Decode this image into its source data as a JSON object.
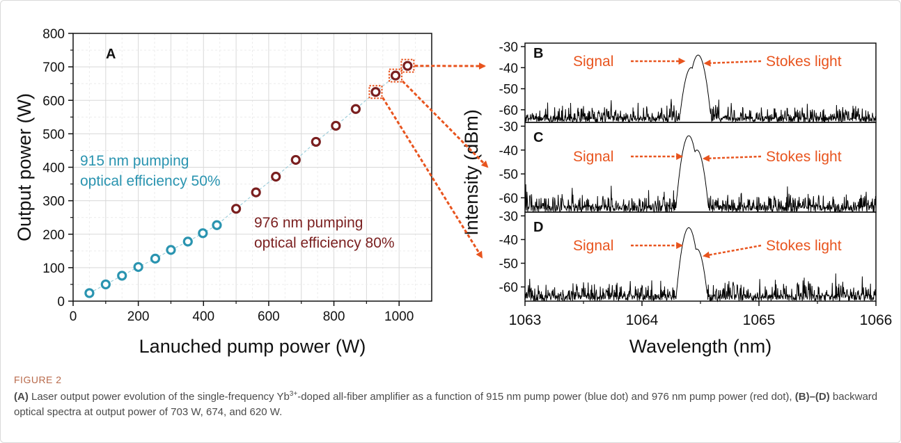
{
  "colors": {
    "pump915": "#2a94b0",
    "pump976": "#7a1f1f",
    "arrow": "#e8541e",
    "spectrum": "#000000"
  },
  "chart_data": [
    {
      "panel": "A",
      "type": "scatter",
      "xlabel": "Lanuched pump power (W)",
      "ylabel": "Output power (W)",
      "xlim": [
        0,
        1100
      ],
      "ylim": [
        0,
        800
      ],
      "xticks": [
        "0",
        "200",
        "400",
        "600",
        "800",
        "1000"
      ],
      "yticks": [
        "0",
        "100",
        "200",
        "300",
        "400",
        "500",
        "600",
        "700",
        "800"
      ],
      "grid": true,
      "series": [
        {
          "name": "915 nm pumping",
          "color_key": "pump915",
          "x": [
            50,
            100,
            150,
            200,
            252,
            300,
            352,
            398,
            441
          ],
          "y": [
            24,
            50,
            76,
            102,
            127,
            153,
            178,
            203,
            227
          ]
        },
        {
          "name": "976 nm pumping",
          "color_key": "pump976",
          "x": [
            500,
            561,
            622,
            683,
            745,
            806,
            867,
            928,
            989,
            1026
          ],
          "y": [
            276,
            325,
            372,
            422,
            476,
            524,
            574,
            625,
            674,
            703
          ]
        }
      ],
      "annotations": [
        {
          "line1": "915 nm pumping",
          "line2": "optical efficiency 50%",
          "color_key": "pump915"
        },
        {
          "line1": "976 nm pumping",
          "line2": "optical efficiency 80%",
          "color_key": "pump976"
        }
      ]
    },
    {
      "type": "line",
      "xlabel": "Wavelength (nm)",
      "ylabel": "Intensity (dBm)",
      "xlim": [
        1063,
        1066
      ],
      "xticks": [
        "1063",
        "1064",
        "1065",
        "1066"
      ],
      "yticks": [
        "-30",
        "-40",
        "-50",
        "-60"
      ],
      "ylim": [
        -66,
        -29
      ],
      "panels": [
        {
          "panel": "B",
          "output_power_W": 703,
          "peaks": [
            {
              "x": 1064.42,
              "y": -40
            },
            {
              "x": 1064.48,
              "y": -34
            }
          ],
          "signal_label": "Signal",
          "stokes_label": "Stokes light"
        },
        {
          "panel": "C",
          "output_power_W": 674,
          "peaks": [
            {
              "x": 1064.4,
              "y": -34
            },
            {
              "x": 1064.47,
              "y": -40
            }
          ],
          "signal_label": "Signal",
          "stokes_label": "Stokes light"
        },
        {
          "panel": "D",
          "output_power_W": 620,
          "peaks": [
            {
              "x": 1064.4,
              "y": -35
            },
            {
              "x": 1064.47,
              "y": -44
            }
          ],
          "signal_label": "Signal",
          "stokes_label": "Stokes light"
        }
      ]
    }
  ],
  "caption": {
    "label": "FIGURE 2",
    "part_a": "(A)",
    "text1": " Laser output power evolution of the single-frequency Yb",
    "sup": "3+",
    "text2": "-doped all-fiber amplifier as a function of 915 nm pump power (blue dot) and 976 nm pump power (red dot), ",
    "part_bd": "(B)–(D)",
    "text3": " backward optical spectra at output power of 703 W, 674, and 620 W."
  }
}
